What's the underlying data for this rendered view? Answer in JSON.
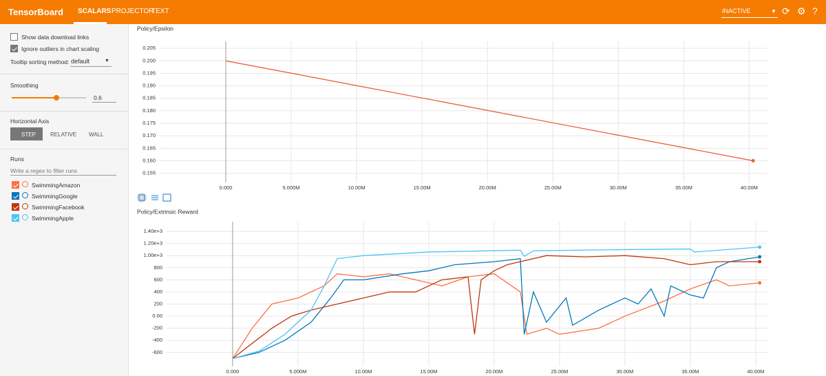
{
  "header": {
    "title": "TensorBoard",
    "tabs": [
      "SCALARS",
      "PROJECTOR",
      "TEXT"
    ],
    "status": "INACTIVE"
  },
  "sidebar": {
    "options": [
      {
        "label": "Show data download links",
        "checked": false
      },
      {
        "label": "Ignore outliers in chart scaling",
        "checked": true
      }
    ],
    "tooltip_label": "Tooltip sorting method:",
    "tooltip_value": "default",
    "smoothing_label": "Smoothing",
    "smoothing": 0.6,
    "axis_label": "Horizontal Axis",
    "axis_options": [
      "STEP",
      "RELATIVE",
      "WALL"
    ],
    "runs_label": "Runs",
    "runs_filter": "Write a regex to filter runs",
    "runs": [
      {
        "name": "SwimmingAmazon",
        "color": "#ff7043"
      },
      {
        "name": "SwimmingGoogle",
        "color": "#0277bd"
      },
      {
        "name": "SwimmingFacebook",
        "color": "#bf360c"
      },
      {
        "name": "SwimmingApple",
        "color": "#4fc3f7"
      }
    ]
  },
  "chart_data": [
    {
      "type": "line",
      "title": "Policy/Epsilon",
      "xlim": [
        -5050000,
        41400000
      ],
      "ylim": [
        0.1513,
        0.2078
      ],
      "xticks": [
        {
          "value": 0,
          "label": "0.000"
        },
        {
          "value": 5000000,
          "label": "5.000M"
        },
        {
          "value": 10000000,
          "label": "10.00M"
        },
        {
          "value": 15000000,
          "label": "15.00M"
        },
        {
          "value": 20000000,
          "label": "20.00M"
        },
        {
          "value": 25000000,
          "label": "25.00M"
        },
        {
          "value": 30000000,
          "label": "30.00M"
        },
        {
          "value": 35000000,
          "label": "35.00M"
        },
        {
          "value": 40000000,
          "label": "40.00M"
        }
      ],
      "yticks": [
        0.205,
        {
          "value": 0.2,
          "label": "0.200"
        },
        0.195,
        {
          "value": 0.19,
          "label": "0.190"
        },
        0.185,
        {
          "value": 0.18,
          "label": "0.180"
        },
        0.175,
        {
          "value": 0.17,
          "label": "0.170"
        },
        0.165,
        {
          "value": 0.16,
          "label": "0.160"
        },
        0.155
      ],
      "grid": true,
      "series": [
        {
          "color": "#e8603c",
          "x": [
            0,
            40300000
          ],
          "values": [
            0.2,
            0.16
          ]
        }
      ]
    },
    {
      "type": "line",
      "title": "Policy/Extrinsic Reward",
      "xlim": [
        -5050000,
        40900000
      ],
      "ylim": [
        -830,
        1560
      ],
      "xticks": [
        {
          "value": 0,
          "label": "0.000"
        },
        {
          "value": 5000000,
          "label": "5.000M"
        },
        {
          "value": 10000000,
          "label": "10.00M"
        },
        {
          "value": 15000000,
          "label": "15.00M"
        },
        {
          "value": 20000000,
          "label": "20.00M"
        },
        {
          "value": 25000000,
          "label": "25.00M"
        },
        {
          "value": 30000000,
          "label": "30.00M"
        },
        {
          "value": 35000000,
          "label": "35.00M"
        },
        {
          "value": 40000000,
          "label": "40.00M"
        }
      ],
      "yticks": [
        {
          "value": 1400,
          "label": "1.40e+3"
        },
        {
          "value": 1200,
          "label": "1.20e+3"
        },
        {
          "value": 1000,
          "label": "1.00e+3"
        },
        800,
        600,
        400,
        200,
        {
          "value": 0,
          "label": "0.00"
        },
        -200,
        -400,
        -600
      ],
      "grid": true,
      "series": [
        {
          "color": "#ff7043",
          "x": [
            0,
            1500000,
            3000000,
            5000000,
            7000000,
            8000000,
            10000000,
            12000000,
            14000000,
            16000000,
            18000000,
            20000000,
            22000000,
            22500000,
            24000000,
            25000000,
            28000000,
            30000000,
            33000000,
            35000000,
            37000000,
            38000000,
            40300000
          ],
          "values": [
            -700,
            -200,
            200,
            300,
            500,
            700,
            650,
            700,
            600,
            500,
            650,
            700,
            400,
            -300,
            -200,
            -300,
            -200,
            0,
            250,
            450,
            600,
            500,
            550
          ]
        },
        {
          "color": "#0277bd",
          "x": [
            0,
            2000000,
            4000000,
            6000000,
            7500000,
            8500000,
            10000000,
            13000000,
            15000000,
            17000000,
            20000000,
            22000000,
            22300000,
            23000000,
            24000000,
            25500000,
            26000000,
            28000000,
            30000000,
            31000000,
            32000000,
            33000000,
            33500000,
            35000000,
            36000000,
            37000000,
            38000000,
            40300000
          ],
          "values": [
            -700,
            -600,
            -400,
            -100,
            300,
            600,
            600,
            700,
            750,
            850,
            900,
            950,
            -300,
            400,
            -100,
            300,
            -150,
            100,
            300,
            200,
            450,
            0,
            500,
            350,
            300,
            800,
            900,
            980
          ]
        },
        {
          "color": "#bf360c",
          "x": [
            0,
            3000000,
            4500000,
            6000000,
            8000000,
            10000000,
            12000000,
            14000000,
            16000000,
            18000000,
            18500000,
            19000000,
            20000000,
            21000000,
            22000000,
            24000000,
            27000000,
            30000000,
            33000000,
            35000000,
            37000000,
            40300000
          ],
          "values": [
            -700,
            -200,
            0,
            100,
            200,
            300,
            400,
            400,
            600,
            650,
            -300,
            600,
            750,
            850,
            900,
            1000,
            980,
            1000,
            950,
            850,
            900,
            900
          ]
        },
        {
          "color": "#4fc3f7",
          "x": [
            0,
            2000000,
            4000000,
            6000000,
            7000000,
            8000000,
            10000000,
            15000000,
            22000000,
            22300000,
            23000000,
            30000000,
            35000000,
            35300000,
            40300000
          ],
          "values": [
            -700,
            -580,
            -300,
            100,
            500,
            950,
            1000,
            1060,
            1090,
            990,
            1080,
            1100,
            1110,
            1060,
            1140
          ]
        }
      ]
    }
  ]
}
